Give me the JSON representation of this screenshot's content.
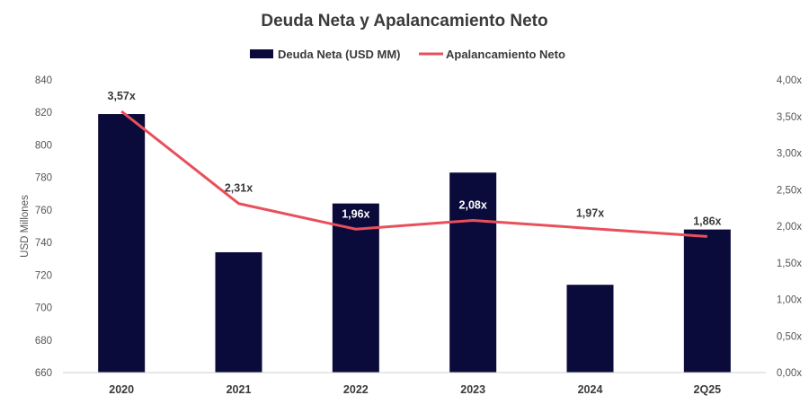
{
  "chart_data": {
    "type": "bar",
    "title": "Deuda Neta y Apalancamiento  Neto",
    "categories": [
      "2020",
      "2021",
      "2022",
      "2023",
      "2024",
      "2Q25"
    ],
    "ylabel": "USD Millones",
    "ylim": [
      660,
      840
    ],
    "yticks": [
      "840",
      "820",
      "800",
      "780",
      "760",
      "740",
      "720",
      "700",
      "680",
      "660"
    ],
    "y2lim": [
      0,
      4
    ],
    "y2ticks": [
      "4,00x",
      "3,50x",
      "3,00x",
      "2,50x",
      "2,00x",
      "1,50x",
      "1,00x",
      "0,50x",
      "0,00x"
    ],
    "legend_position": "top-center",
    "grid": false,
    "series": [
      {
        "name": "Deuda Neta (USD MM)",
        "type": "bar",
        "axis": "left",
        "color": "#0b0b3b",
        "values": [
          819,
          734,
          764,
          783,
          714,
          748
        ]
      },
      {
        "name": "Apalancamiento Neto",
        "type": "line",
        "axis": "right",
        "color": "#e8505b",
        "values": [
          3.57,
          2.31,
          1.96,
          2.08,
          1.97,
          1.86
        ],
        "labels": [
          "3,57x",
          "2,31x",
          "1,96x",
          "2,08x",
          "1,97x",
          "1,86x"
        ]
      }
    ]
  }
}
